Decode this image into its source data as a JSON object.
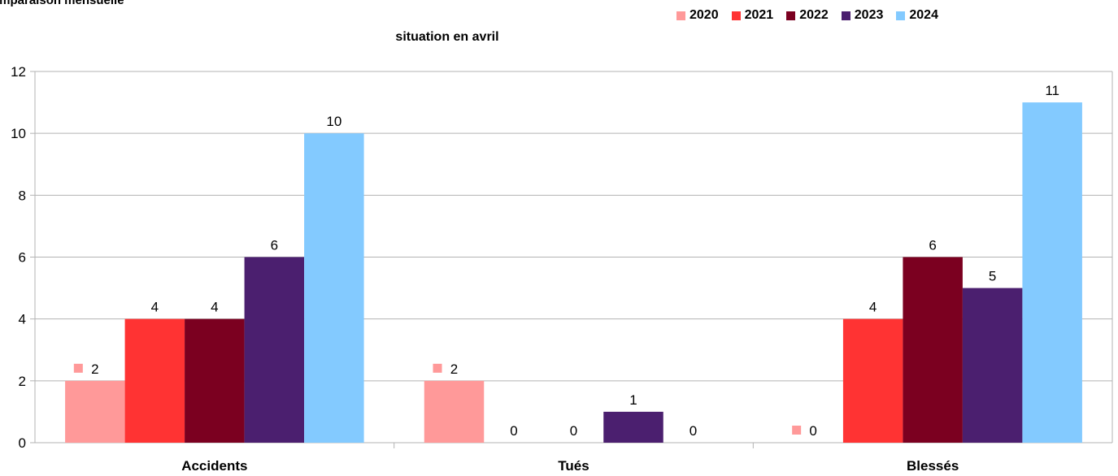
{
  "header": {
    "title": "omparaison mensuelle",
    "subtitle": "situation en avril"
  },
  "chart_data": {
    "type": "bar",
    "title": "situation en avril",
    "categories": [
      "Accidents",
      "Tués",
      "Blessés"
    ],
    "series": [
      {
        "name": "2020",
        "color": "#ff9999",
        "values": [
          2,
          2,
          0
        ]
      },
      {
        "name": "2021",
        "color": "#ff3333",
        "values": [
          4,
          0,
          4
        ]
      },
      {
        "name": "2022",
        "color": "#7b0020",
        "values": [
          4,
          0,
          6
        ]
      },
      {
        "name": "2023",
        "color": "#4b1f6f",
        "values": [
          6,
          1,
          5
        ]
      },
      {
        "name": "2024",
        "color": "#83caff",
        "values": [
          10,
          0,
          11
        ]
      }
    ],
    "yticks": [
      0,
      2,
      4,
      6,
      8,
      10,
      12
    ],
    "ylim": [
      0,
      12
    ],
    "grid": true,
    "legend": "top-right"
  }
}
